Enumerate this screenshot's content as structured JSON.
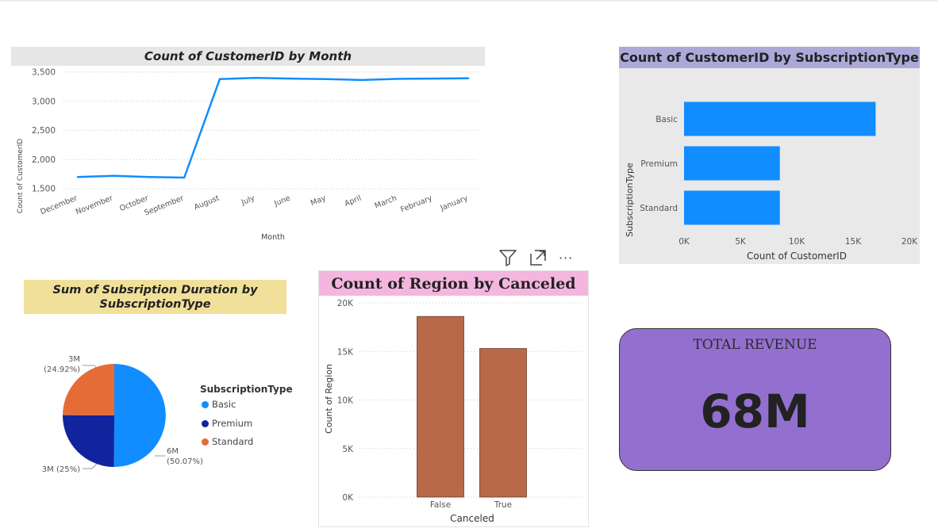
{
  "visual_header": {
    "filter_icon": "filter-icon",
    "focus_icon": "focus-mode-icon",
    "more_icon": "more-options-icon",
    "more_label": "···"
  },
  "kpi": {
    "label": "TOTAL REVENUE",
    "value": "68M",
    "background": "#9370cf"
  },
  "chart_data": [
    {
      "id": "line",
      "type": "line",
      "title": "Count of CustomerID by Month",
      "title_bg": "#e6e6e6",
      "xlabel": "Month",
      "ylabel": "Count of CustomerID",
      "categories": [
        "December",
        "November",
        "October",
        "September",
        "August",
        "July",
        "June",
        "May",
        "April",
        "March",
        "February",
        "January"
      ],
      "values": [
        1700,
        1720,
        1700,
        1690,
        3380,
        3400,
        3390,
        3380,
        3365,
        3385,
        3390,
        3395
      ],
      "ylim": [
        1500,
        3500
      ],
      "yticks": [
        1500,
        2000,
        2500,
        3000,
        3500
      ],
      "ytick_labels": [
        "1,500",
        "2,000",
        "2,500",
        "3,000",
        "3,500"
      ],
      "grid": true,
      "color": "#118dff"
    },
    {
      "id": "hbar",
      "type": "bar",
      "orientation": "horizontal",
      "title": "Count of CustomerID by SubscriptionType",
      "title_bg": "#aaa9d8",
      "background": "#e9e9e9",
      "xlabel": "Count of CustomerID",
      "ylabel": "SubscriptionType",
      "categories": [
        "Basic",
        "Premium",
        "Standard"
      ],
      "values": [
        17000,
        8500,
        8500
      ],
      "xlim": [
        0,
        20000
      ],
      "xticks": [
        0,
        5000,
        10000,
        15000,
        20000
      ],
      "xtick_labels": [
        "0K",
        "5K",
        "10K",
        "15K",
        "20K"
      ],
      "color": "#118dff"
    },
    {
      "id": "pie",
      "type": "pie",
      "title": "Sum of Subsription Duration by SubscriptionType",
      "title_lines": [
        "Sum of Subsription Duration by",
        "SubscriptionType"
      ],
      "title_bg": "#f0e099",
      "legend_title": "SubscriptionType",
      "legend_position": "right",
      "slices": [
        {
          "name": "Basic",
          "percent": 50.07,
          "label": "6M",
          "pct_label": "(50.07%)",
          "color": "#118dff"
        },
        {
          "name": "Premium",
          "percent": 25.0,
          "label": "3M (25%)",
          "pct_label": "",
          "color": "#12239e"
        },
        {
          "name": "Standard",
          "percent": 24.92,
          "label": "3M",
          "pct_label": "(24.92%)",
          "color": "#e66c37"
        }
      ]
    },
    {
      "id": "vbar",
      "type": "bar",
      "orientation": "vertical",
      "title": "Count of Region by Canceled",
      "title_bg": "#f4b6de",
      "xlabel": "Canceled",
      "ylabel": "Count of Region",
      "categories": [
        "False",
        "True"
      ],
      "values": [
        18600,
        15300
      ],
      "ylim": [
        0,
        20000
      ],
      "yticks": [
        0,
        5000,
        10000,
        15000,
        20000
      ],
      "ytick_labels": [
        "0K",
        "5K",
        "10K",
        "15K",
        "20K"
      ],
      "color": "#b8694a"
    }
  ]
}
